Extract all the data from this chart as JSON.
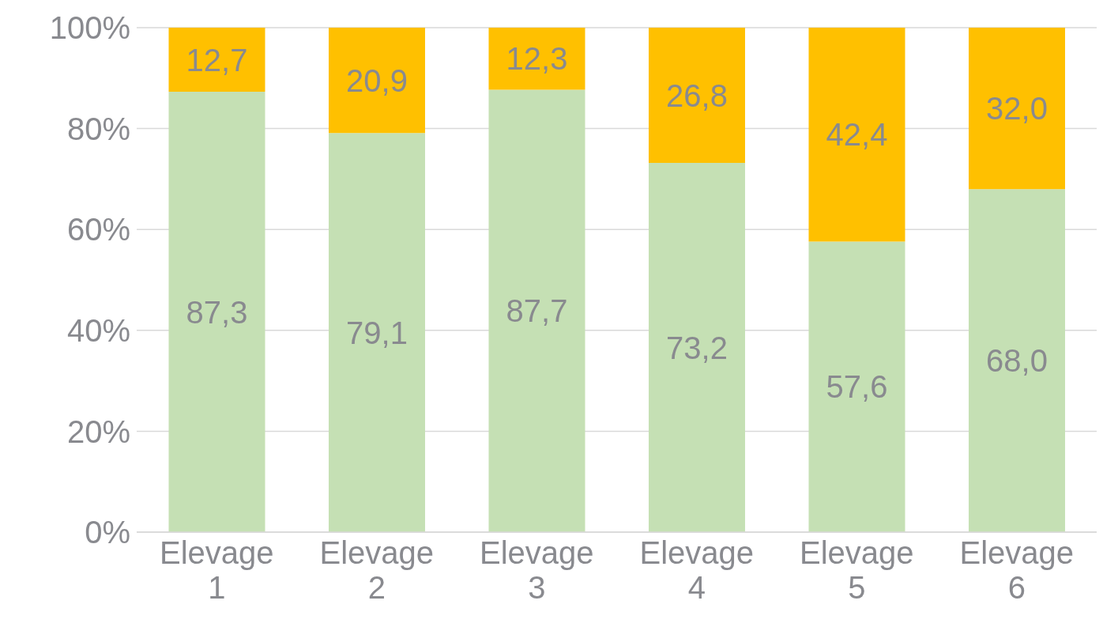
{
  "chart_data": {
    "type": "bar",
    "stacked": true,
    "categories": [
      "Elevage 1",
      "Elevage 2",
      "Elevage 3",
      "Elevage 4",
      "Elevage 5",
      "Elevage 6"
    ],
    "series": [
      {
        "color": "#c5e0b4",
        "values": [
          87.3,
          79.1,
          87.7,
          73.2,
          57.6,
          68.0
        ],
        "value_labels": [
          "87,3",
          "79,1",
          "87,7",
          "73,2",
          "57,6",
          "68,0"
        ]
      },
      {
        "color": "#ffc000",
        "values": [
          12.7,
          20.9,
          12.3,
          26.8,
          42.4,
          32.0
        ],
        "value_labels": [
          "12,7",
          "20,9",
          "12,3",
          "26,8",
          "42,4",
          "32,0"
        ]
      }
    ],
    "ylim": [
      0,
      100
    ],
    "yticks": [
      {
        "value": 0,
        "label": "0%"
      },
      {
        "value": 20,
        "label": "20%"
      },
      {
        "value": 40,
        "label": "40%"
      },
      {
        "value": 60,
        "label": "60%"
      },
      {
        "value": 80,
        "label": "80%"
      },
      {
        "value": 100,
        "label": "100%"
      }
    ],
    "grid": "y",
    "legend": false
  }
}
